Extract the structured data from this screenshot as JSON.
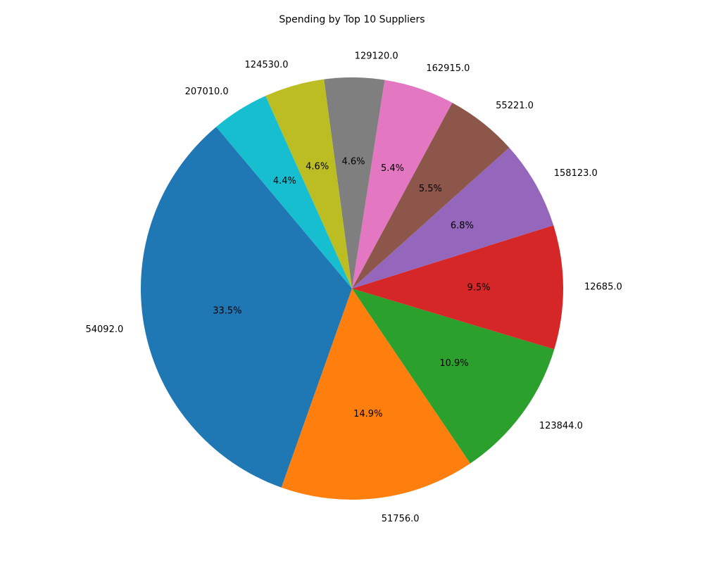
{
  "chart_data": {
    "type": "pie",
    "title": "Spending by Top 10 Suppliers",
    "start_angle_deg": 130,
    "direction": "counterclockwise",
    "legend": "none",
    "slices": [
      {
        "label": "54092.0",
        "percent": 33.5,
        "pct_label": "33.5%",
        "color": "#1f77b4"
      },
      {
        "label": "51756.0",
        "percent": 14.9,
        "pct_label": "14.9%",
        "color": "#ff7f0e"
      },
      {
        "label": "123844.0",
        "percent": 10.9,
        "pct_label": "10.9%",
        "color": "#2ca02c"
      },
      {
        "label": "12685.0",
        "percent": 9.5,
        "pct_label": "9.5%",
        "color": "#d62728"
      },
      {
        "label": "158123.0",
        "percent": 6.8,
        "pct_label": "6.8%",
        "color": "#9467bd"
      },
      {
        "label": "55221.0",
        "percent": 5.5,
        "pct_label": "5.5%",
        "color": "#8c564b"
      },
      {
        "label": "162915.0",
        "percent": 5.4,
        "pct_label": "5.4%",
        "color": "#e377c2"
      },
      {
        "label": "129120.0",
        "percent": 4.6,
        "pct_label": "4.6%",
        "color": "#7f7f7f"
      },
      {
        "label": "124530.0",
        "percent": 4.6,
        "pct_label": "4.6%",
        "color": "#bcbd22"
      },
      {
        "label": "207010.0",
        "percent": 4.4,
        "pct_label": "4.4%",
        "color": "#17becf"
      }
    ]
  }
}
